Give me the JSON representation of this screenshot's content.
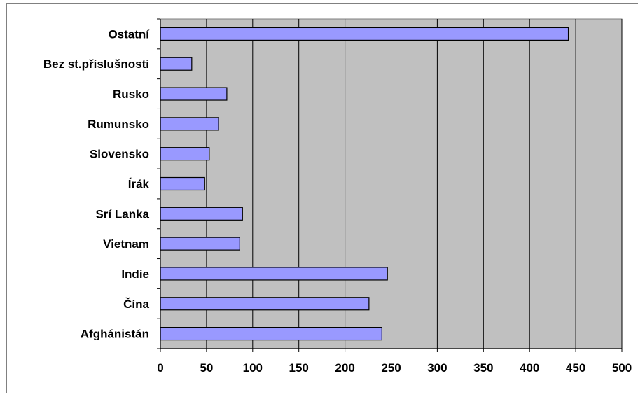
{
  "chart_data": {
    "type": "bar",
    "orientation": "horizontal",
    "title": "",
    "xlabel": "",
    "ylabel": "",
    "categories": [
      "Ostatní",
      "Bez st.příslušnosti",
      "Rusko",
      "Rumunsko",
      "Slovensko",
      "Írák",
      "Srí Lanka",
      "Vietnam",
      "Indie",
      "Čína",
      "Afghánistán"
    ],
    "values": [
      442,
      34,
      72,
      63,
      53,
      48,
      89,
      86,
      246,
      226,
      240
    ],
    "xlim": [
      0,
      500
    ],
    "x_ticks": [
      0,
      50,
      100,
      150,
      200,
      250,
      300,
      350,
      400,
      450,
      500
    ],
    "grid": "vertical",
    "legend": "none",
    "colors": {
      "plot_background": "#c0c0c0",
      "bar_fill": "#9999ff",
      "bar_stroke": "#000000",
      "grid": "#000000"
    }
  }
}
